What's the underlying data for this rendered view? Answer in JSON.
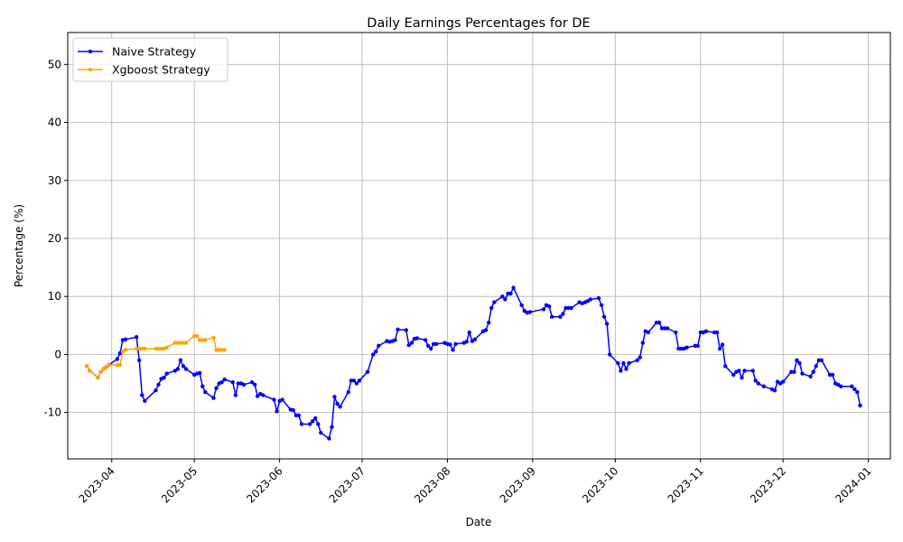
{
  "chart_data": {
    "type": "line",
    "title": "Daily Earnings Percentages for DE",
    "xlabel": "Date",
    "ylabel": "Percentage (%)",
    "xlim": [
      "2023-03-16",
      "2024-01-09"
    ],
    "ylim": [
      -18,
      55.5
    ],
    "x_ticks": [
      "2023-04",
      "2023-05",
      "2023-06",
      "2023-07",
      "2023-08",
      "2023-09",
      "2023-10",
      "2023-11",
      "2023-12",
      "2024-01"
    ],
    "y_ticks": [
      -10,
      0,
      10,
      20,
      30,
      40,
      50
    ],
    "grid": true,
    "legend_position": "upper-left",
    "series": [
      {
        "name": "Naive Strategy",
        "color": "#0000ff",
        "points": [
          [
            "2023-03-23",
            -2.0
          ],
          [
            "2023-03-24",
            -2.8
          ],
          [
            "2023-03-27",
            -4.0
          ],
          [
            "2023-03-28",
            -3.0
          ],
          [
            "2023-03-29",
            -2.5
          ],
          [
            "2023-03-30",
            -2.2
          ],
          [
            "2023-03-31",
            -1.8
          ],
          [
            "2023-04-03",
            -0.8
          ],
          [
            "2023-04-04",
            0.2
          ],
          [
            "2023-04-05",
            2.5
          ],
          [
            "2023-04-06",
            2.6
          ],
          [
            "2023-04-10",
            3.0
          ],
          [
            "2023-04-11",
            -1.0
          ],
          [
            "2023-04-12",
            -7.0
          ],
          [
            "2023-04-13",
            -8.0
          ],
          [
            "2023-04-17",
            -6.2
          ],
          [
            "2023-04-18",
            -5.2
          ],
          [
            "2023-04-19",
            -4.2
          ],
          [
            "2023-04-20",
            -4.0
          ],
          [
            "2023-04-21",
            -3.3
          ],
          [
            "2023-04-24",
            -2.8
          ],
          [
            "2023-04-25",
            -2.5
          ],
          [
            "2023-04-26",
            -1.0
          ],
          [
            "2023-04-27",
            -2.0
          ],
          [
            "2023-04-28",
            -2.5
          ],
          [
            "2023-05-01",
            -3.5
          ],
          [
            "2023-05-02",
            -3.3
          ],
          [
            "2023-05-03",
            -3.2
          ],
          [
            "2023-05-04",
            -5.5
          ],
          [
            "2023-05-05",
            -6.5
          ],
          [
            "2023-05-08",
            -7.5
          ],
          [
            "2023-05-09",
            -5.8
          ],
          [
            "2023-05-10",
            -5.0
          ],
          [
            "2023-05-11",
            -4.8
          ],
          [
            "2023-05-12",
            -4.3
          ],
          [
            "2023-05-15",
            -4.8
          ],
          [
            "2023-05-16",
            -7.0
          ],
          [
            "2023-05-17",
            -5.0
          ],
          [
            "2023-05-18",
            -5.0
          ],
          [
            "2023-05-19",
            -5.2
          ],
          [
            "2023-05-22",
            -4.8
          ],
          [
            "2023-05-23",
            -5.2
          ],
          [
            "2023-05-24",
            -7.2
          ],
          [
            "2023-05-25",
            -6.8
          ],
          [
            "2023-05-26",
            -7.0
          ],
          [
            "2023-05-30",
            -7.8
          ],
          [
            "2023-05-31",
            -9.8
          ],
          [
            "2023-06-01",
            -8.0
          ],
          [
            "2023-06-02",
            -7.8
          ],
          [
            "2023-06-05",
            -9.5
          ],
          [
            "2023-06-06",
            -9.6
          ],
          [
            "2023-06-07",
            -10.5
          ],
          [
            "2023-06-08",
            -10.5
          ],
          [
            "2023-06-09",
            -12.0
          ],
          [
            "2023-06-12",
            -12.0
          ],
          [
            "2023-06-13",
            -11.5
          ],
          [
            "2023-06-14",
            -11.0
          ],
          [
            "2023-06-15",
            -12.0
          ],
          [
            "2023-06-16",
            -13.5
          ],
          [
            "2023-06-19",
            -14.5
          ],
          [
            "2023-06-20",
            -12.5
          ],
          [
            "2023-06-21",
            -7.3
          ],
          [
            "2023-06-22",
            -8.5
          ],
          [
            "2023-06-23",
            -9.0
          ],
          [
            "2023-06-26",
            -6.5
          ],
          [
            "2023-06-27",
            -4.5
          ],
          [
            "2023-06-28",
            -4.5
          ],
          [
            "2023-06-29",
            -5.0
          ],
          [
            "2023-06-30",
            -4.5
          ],
          [
            "2023-07-03",
            -3.0
          ],
          [
            "2023-07-05",
            0.0
          ],
          [
            "2023-07-06",
            0.5
          ],
          [
            "2023-07-07",
            1.5
          ],
          [
            "2023-07-10",
            2.3
          ],
          [
            "2023-07-11",
            2.2
          ],
          [
            "2023-07-12",
            2.3
          ],
          [
            "2023-07-13",
            2.5
          ],
          [
            "2023-07-14",
            4.3
          ],
          [
            "2023-07-17",
            4.2
          ],
          [
            "2023-07-18",
            1.6
          ],
          [
            "2023-07-19",
            2.0
          ],
          [
            "2023-07-20",
            2.7
          ],
          [
            "2023-07-21",
            2.8
          ],
          [
            "2023-07-24",
            2.5
          ],
          [
            "2023-07-25",
            1.5
          ],
          [
            "2023-07-26",
            1.0
          ],
          [
            "2023-07-27",
            1.8
          ],
          [
            "2023-07-28",
            1.8
          ],
          [
            "2023-07-31",
            2.0
          ],
          [
            "2023-08-01",
            1.8
          ],
          [
            "2023-08-02",
            1.7
          ],
          [
            "2023-08-03",
            0.8
          ],
          [
            "2023-08-04",
            1.8
          ],
          [
            "2023-08-07",
            2.0
          ],
          [
            "2023-08-08",
            2.2
          ],
          [
            "2023-08-09",
            3.8
          ],
          [
            "2023-08-10",
            2.3
          ],
          [
            "2023-08-11",
            2.6
          ],
          [
            "2023-08-14",
            4.0
          ],
          [
            "2023-08-15",
            4.2
          ],
          [
            "2023-08-16",
            5.5
          ],
          [
            "2023-08-17",
            8.0
          ],
          [
            "2023-08-18",
            9.0
          ],
          [
            "2023-08-21",
            10.0
          ],
          [
            "2023-08-22",
            9.5
          ],
          [
            "2023-08-23",
            10.5
          ],
          [
            "2023-08-24",
            10.5
          ],
          [
            "2023-08-25",
            11.5
          ],
          [
            "2023-08-28",
            8.5
          ],
          [
            "2023-08-29",
            7.5
          ],
          [
            "2023-08-30",
            7.2
          ],
          [
            "2023-08-31",
            7.3
          ],
          [
            "2023-09-05",
            7.8
          ],
          [
            "2023-09-06",
            8.5
          ],
          [
            "2023-09-07",
            8.3
          ],
          [
            "2023-09-08",
            6.5
          ],
          [
            "2023-09-11",
            6.5
          ],
          [
            "2023-09-12",
            7.0
          ],
          [
            "2023-09-13",
            8.0
          ],
          [
            "2023-09-14",
            8.0
          ],
          [
            "2023-09-15",
            8.0
          ],
          [
            "2023-09-18",
            9.0
          ],
          [
            "2023-09-19",
            8.8
          ],
          [
            "2023-09-20",
            9.0
          ],
          [
            "2023-09-21",
            9.2
          ],
          [
            "2023-09-22",
            9.5
          ],
          [
            "2023-09-25",
            9.7
          ],
          [
            "2023-09-26",
            8.5
          ],
          [
            "2023-09-27",
            6.5
          ],
          [
            "2023-09-28",
            5.3
          ],
          [
            "2023-09-29",
            0.0
          ],
          [
            "2023-10-02",
            -1.5
          ],
          [
            "2023-10-03",
            -2.8
          ],
          [
            "2023-10-04",
            -1.5
          ],
          [
            "2023-10-05",
            -2.5
          ],
          [
            "2023-10-06",
            -1.5
          ],
          [
            "2023-10-09",
            -1.0
          ],
          [
            "2023-10-10",
            -0.5
          ],
          [
            "2023-10-11",
            2.0
          ],
          [
            "2023-10-12",
            4.0
          ],
          [
            "2023-10-13",
            3.8
          ],
          [
            "2023-10-16",
            5.5
          ],
          [
            "2023-10-17",
            5.5
          ],
          [
            "2023-10-18",
            4.5
          ],
          [
            "2023-10-19",
            4.5
          ],
          [
            "2023-10-20",
            4.5
          ],
          [
            "2023-10-23",
            3.8
          ],
          [
            "2023-10-24",
            1.0
          ],
          [
            "2023-10-25",
            1.0
          ],
          [
            "2023-10-26",
            1.0
          ],
          [
            "2023-10-27",
            1.2
          ],
          [
            "2023-10-30",
            1.5
          ],
          [
            "2023-10-31",
            1.5
          ],
          [
            "2023-11-01",
            3.8
          ],
          [
            "2023-11-02",
            3.8
          ],
          [
            "2023-11-03",
            4.0
          ],
          [
            "2023-11-06",
            3.8
          ],
          [
            "2023-11-07",
            3.8
          ],
          [
            "2023-11-08",
            1.0
          ],
          [
            "2023-11-09",
            1.7
          ],
          [
            "2023-11-10",
            -2.0
          ],
          [
            "2023-11-13",
            -3.5
          ],
          [
            "2023-11-14",
            -3.0
          ],
          [
            "2023-11-15",
            -2.8
          ],
          [
            "2023-11-16",
            -4.0
          ],
          [
            "2023-11-17",
            -2.8
          ],
          [
            "2023-11-20",
            -2.8
          ],
          [
            "2023-11-21",
            -4.5
          ],
          [
            "2023-11-22",
            -5.0
          ],
          [
            "2023-11-24",
            -5.5
          ],
          [
            "2023-11-27",
            -6.0
          ],
          [
            "2023-11-28",
            -6.2
          ],
          [
            "2023-11-29",
            -4.7
          ],
          [
            "2023-11-30",
            -5.0
          ],
          [
            "2023-12-01",
            -4.7
          ],
          [
            "2023-12-04",
            -3.0
          ],
          [
            "2023-12-05",
            -3.0
          ],
          [
            "2023-12-06",
            -1.0
          ],
          [
            "2023-12-07",
            -1.5
          ],
          [
            "2023-12-08",
            -3.3
          ],
          [
            "2023-12-11",
            -3.8
          ],
          [
            "2023-12-12",
            -3.0
          ],
          [
            "2023-12-13",
            -2.0
          ],
          [
            "2023-12-14",
            -1.0
          ],
          [
            "2023-12-15",
            -1.0
          ],
          [
            "2023-12-18",
            -3.5
          ],
          [
            "2023-12-19",
            -3.5
          ],
          [
            "2023-12-20",
            -5.0
          ],
          [
            "2023-12-21",
            -5.2
          ],
          [
            "2023-12-22",
            -5.5
          ],
          [
            "2023-12-26",
            -5.5
          ],
          [
            "2023-12-27",
            -6.0
          ],
          [
            "2023-12-28",
            -6.5
          ],
          [
            "2023-12-29",
            -8.8
          ]
        ]
      },
      {
        "name": "Xgboost Strategy",
        "color": "#ffa500",
        "points": [
          [
            "2023-03-23",
            -2.0
          ],
          [
            "2023-03-24",
            -2.8
          ],
          [
            "2023-03-27",
            -4.0
          ],
          [
            "2023-03-28",
            -3.0
          ],
          [
            "2023-03-29",
            -2.5
          ],
          [
            "2023-03-30",
            -2.2
          ],
          [
            "2023-03-31",
            -1.8
          ],
          [
            "2023-04-03",
            -1.8
          ],
          [
            "2023-04-04",
            -1.8
          ],
          [
            "2023-04-05",
            0.5
          ],
          [
            "2023-04-06",
            0.8
          ],
          [
            "2023-04-10",
            1.0
          ],
          [
            "2023-04-11",
            1.0
          ],
          [
            "2023-04-12",
            1.0
          ],
          [
            "2023-04-13",
            1.0
          ],
          [
            "2023-04-17",
            1.0
          ],
          [
            "2023-04-18",
            1.0
          ],
          [
            "2023-04-19",
            1.0
          ],
          [
            "2023-04-20",
            1.0
          ],
          [
            "2023-04-21",
            1.2
          ],
          [
            "2023-04-24",
            2.0
          ],
          [
            "2023-04-25",
            2.0
          ],
          [
            "2023-04-26",
            2.0
          ],
          [
            "2023-04-27",
            2.0
          ],
          [
            "2023-04-28",
            2.0
          ],
          [
            "2023-05-01",
            3.2
          ],
          [
            "2023-05-02",
            3.2
          ],
          [
            "2023-05-03",
            2.5
          ],
          [
            "2023-05-04",
            2.5
          ],
          [
            "2023-05-05",
            2.5
          ],
          [
            "2023-05-08",
            2.9
          ],
          [
            "2023-05-09",
            0.8
          ],
          [
            "2023-05-10",
            0.8
          ],
          [
            "2023-05-11",
            0.8
          ],
          [
            "2023-05-12",
            0.8
          ]
        ]
      }
    ]
  }
}
